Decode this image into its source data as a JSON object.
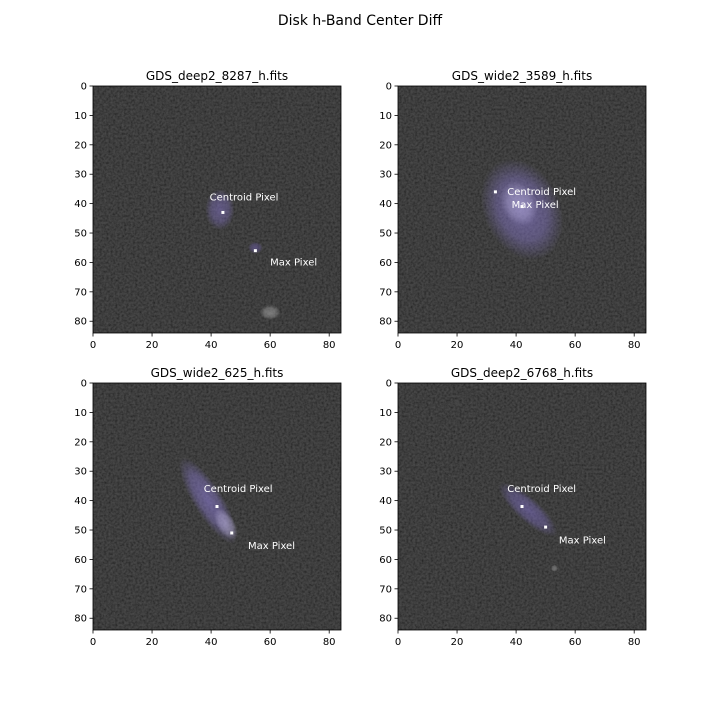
{
  "chart_data": {
    "type": "image",
    "title": "Disk h-Band Center Diff",
    "panels": [
      {
        "title": "GDS_deep2_8287_h.fits",
        "xlim": [
          0,
          84
        ],
        "ylim": [
          84,
          0
        ],
        "xticks": [
          "0",
          "20",
          "40",
          "60",
          "80"
        ],
        "yticks": [
          "0",
          "10",
          "20",
          "30",
          "40",
          "50",
          "60",
          "70",
          "80"
        ],
        "centroid": {
          "label": "Centroid Pixel",
          "x": 44,
          "y": 43
        },
        "max": {
          "label": "Max Pixel",
          "x": 55,
          "y": 56
        },
        "centroid_label_pos": {
          "x": 39.5,
          "y": 38
        },
        "max_label_pos": {
          "x": 60,
          "y": 60
        },
        "blobs": [
          {
            "cx": 43,
            "cy": 42,
            "rx": 5,
            "ry": 7,
            "angle": 0,
            "tint": "#8070c0",
            "strength": 0.55
          },
          {
            "cx": 55,
            "cy": 55,
            "rx": 2.5,
            "ry": 2,
            "angle": 0,
            "tint": "#7060b0",
            "strength": 0.5
          },
          {
            "cx": 60,
            "cy": 77,
            "rx": 3.5,
            "ry": 2.5,
            "angle": 0,
            "tint": "#bbbbbb",
            "strength": 0.5
          }
        ]
      },
      {
        "title": "GDS_wide2_3589_h.fits",
        "xlim": [
          0,
          84
        ],
        "ylim": [
          84,
          0
        ],
        "xticks": [
          "0",
          "20",
          "40",
          "60",
          "80"
        ],
        "yticks": [
          "0",
          "10",
          "20",
          "30",
          "40",
          "50",
          "60",
          "70",
          "80"
        ],
        "centroid": {
          "label": "Centroid Pixel",
          "x": 42,
          "y": 41
        },
        "max": {
          "label": "Max Pixel",
          "x": 33,
          "y": 36
        },
        "centroid_label_pos": {
          "x": 37,
          "y": 36
        },
        "max_label_pos": {
          "x": 38.5,
          "y": 40.5
        },
        "blobs": [
          {
            "cx": 42,
            "cy": 42,
            "rx": 13,
            "ry": 18,
            "angle": -25,
            "tint": "#8a7ad0",
            "strength": 0.6
          },
          {
            "cx": 41,
            "cy": 40,
            "rx": 6,
            "ry": 8,
            "angle": -25,
            "tint": "#c8c0ee",
            "strength": 0.45
          }
        ]
      },
      {
        "title": "GDS_wide2_625_h.fits",
        "xlim": [
          0,
          84
        ],
        "ylim": [
          84,
          0
        ],
        "xticks": [
          "0",
          "20",
          "40",
          "60",
          "80"
        ],
        "yticks": [
          "0",
          "10",
          "20",
          "30",
          "40",
          "50",
          "60",
          "70",
          "80"
        ],
        "centroid": {
          "label": "Centroid Pixel",
          "x": 42,
          "y": 42
        },
        "max": {
          "label": "Max Pixel",
          "x": 47,
          "y": 51
        },
        "centroid_label_pos": {
          "x": 37.5,
          "y": 36
        },
        "max_label_pos": {
          "x": 52.5,
          "y": 55.5
        },
        "blobs": [
          {
            "cx": 39,
            "cy": 40,
            "rx": 5,
            "ry": 17,
            "angle": -32,
            "tint": "#8a7ad0",
            "strength": 0.6
          },
          {
            "cx": 45,
            "cy": 48,
            "rx": 3,
            "ry": 6,
            "angle": -32,
            "tint": "#d0c8f0",
            "strength": 0.45
          }
        ]
      },
      {
        "title": "GDS_deep2_6768_h.fits",
        "xlim": [
          0,
          84
        ],
        "ylim": [
          84,
          0
        ],
        "xticks": [
          "0",
          "20",
          "40",
          "60",
          "80"
        ],
        "yticks": [
          "0",
          "10",
          "20",
          "30",
          "40",
          "50",
          "60",
          "70",
          "80"
        ],
        "centroid": {
          "label": "Centroid Pixel",
          "x": 42,
          "y": 42
        },
        "max": {
          "label": "Max Pixel",
          "x": 50,
          "y": 49
        },
        "centroid_label_pos": {
          "x": 37,
          "y": 36
        },
        "max_label_pos": {
          "x": 54.5,
          "y": 53.5
        },
        "blobs": [
          {
            "cx": 44,
            "cy": 43,
            "rx": 4,
            "ry": 13,
            "angle": -48,
            "tint": "#7e6ec4",
            "strength": 0.55
          },
          {
            "cx": 53,
            "cy": 63,
            "rx": 1.2,
            "ry": 1.2,
            "angle": 0,
            "tint": "#aaaaaa",
            "strength": 0.5
          },
          {
            "cx": 20,
            "cy": 7,
            "rx": 1,
            "ry": 1,
            "angle": 0,
            "tint": "#555555",
            "strength": 0.4
          }
        ]
      }
    ]
  }
}
